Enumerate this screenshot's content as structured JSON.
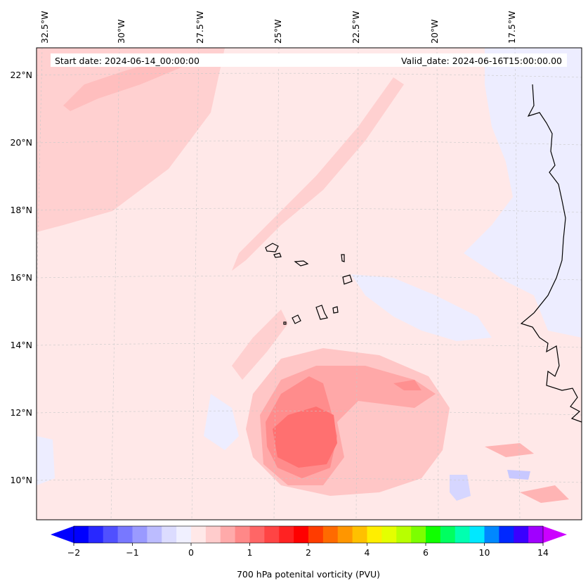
{
  "header": {
    "start_date": "Start date: 2024-06-14_00:00:00",
    "valid_date": "Valid_date: 2024-06-16T15:00:00.00"
  },
  "map": {
    "region": "Cape Verde / West African coast",
    "lon_labels": [
      "32.5°W",
      "30°W",
      "27.5°W",
      "25°W",
      "22.5°W",
      "20°W",
      "17.5°W"
    ],
    "lat_labels": [
      "22°N",
      "20°N",
      "18°N",
      "16°N",
      "14°N",
      "12°N",
      "10°N"
    ],
    "field": "700 hPa potential vorticity",
    "background_color": "#ffe8e8"
  },
  "colorbar": {
    "label": "700 hPa potenital vorticity (PVU)",
    "tick_labels": [
      "−2",
      "−1",
      "0",
      "1",
      "2",
      "4",
      "6",
      "10",
      "14"
    ],
    "colors": [
      "#0000ff",
      "#2828ff",
      "#5050ff",
      "#7878ff",
      "#9a9aff",
      "#bcbcff",
      "#dcdcff",
      "#f0f0ff",
      "#ffe8e8",
      "#ffcccc",
      "#ffaaaa",
      "#ff8888",
      "#ff6666",
      "#ff4444",
      "#ff2222",
      "#ff0000",
      "#ff3c00",
      "#ff6a00",
      "#ff9600",
      "#ffc000",
      "#ffee00",
      "#e4ff00",
      "#b8ff00",
      "#7cff00",
      "#10ff00",
      "#00ff60",
      "#00ffb0",
      "#00e8ff",
      "#0088ff",
      "#0028ff",
      "#3a00ff",
      "#a000ff"
    ],
    "under_color": "#0000ff",
    "over_color": "#cc00ff"
  }
}
